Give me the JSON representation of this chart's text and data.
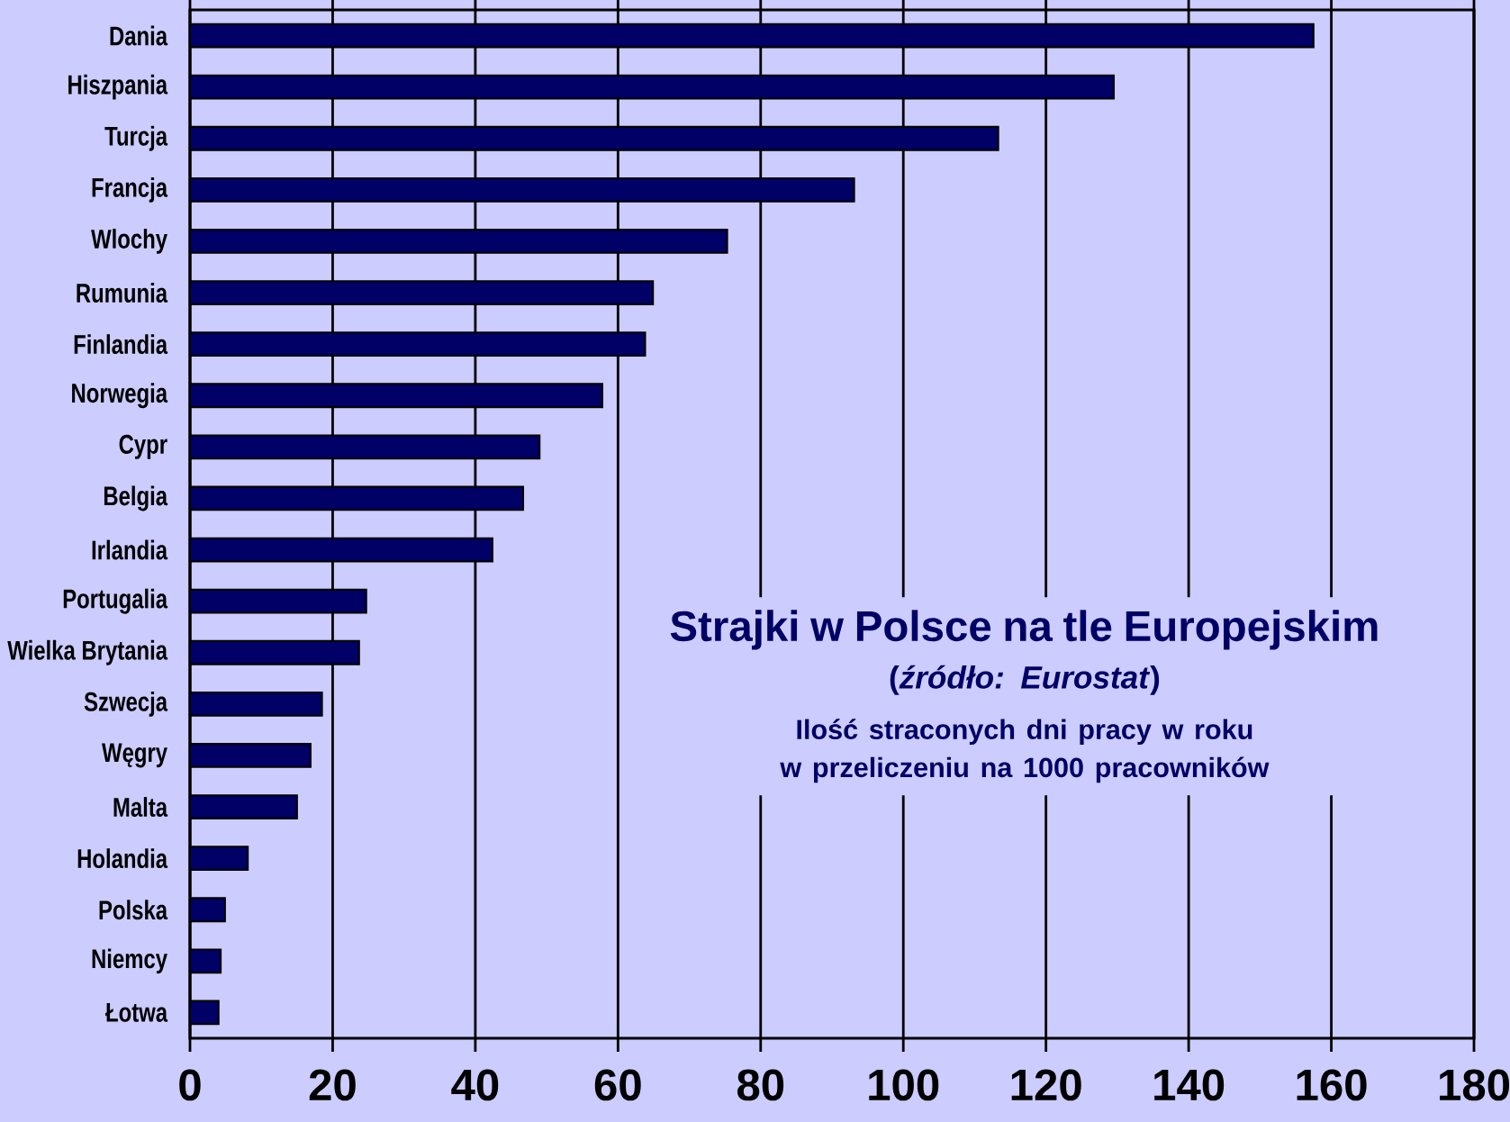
{
  "chart_data": {
    "type": "bar",
    "orientation": "horizontal",
    "title": "Strajki w Polsce na tle Europejskim",
    "subtitle": "(*źródło: Eurostat*)",
    "annotations": [
      "Ilość straconych dni pracy w roku w przeliczeniu na 1000 pracowników"
    ],
    "categories": [
      "Dania",
      "Hiszpania",
      "Turcja",
      "Francja",
      "Wlochy",
      "Rumunia",
      "Finlandia",
      "Norwegia",
      "Cypr",
      "Belgia",
      "Irlandia",
      "Portugalia",
      "Wielka Brytania",
      "Szwecja",
      "Węgry",
      "Malta",
      "Holandia",
      "Polska",
      "Niemcy",
      "Łotwa"
    ],
    "values": [
      157.5,
      129.5,
      113.3,
      93.1,
      75.3,
      64.9,
      63.8,
      57.8,
      49.0,
      46.7,
      42.4,
      24.7,
      23.7,
      18.5,
      16.9,
      15.0,
      8.1,
      4.9,
      4.3,
      4.0
    ],
    "color": "#000066",
    "xlim": [
      0,
      180
    ],
    "xticks": [
      0,
      20,
      40,
      60,
      80,
      100,
      120,
      140,
      160,
      180
    ],
    "grid": "x"
  }
}
